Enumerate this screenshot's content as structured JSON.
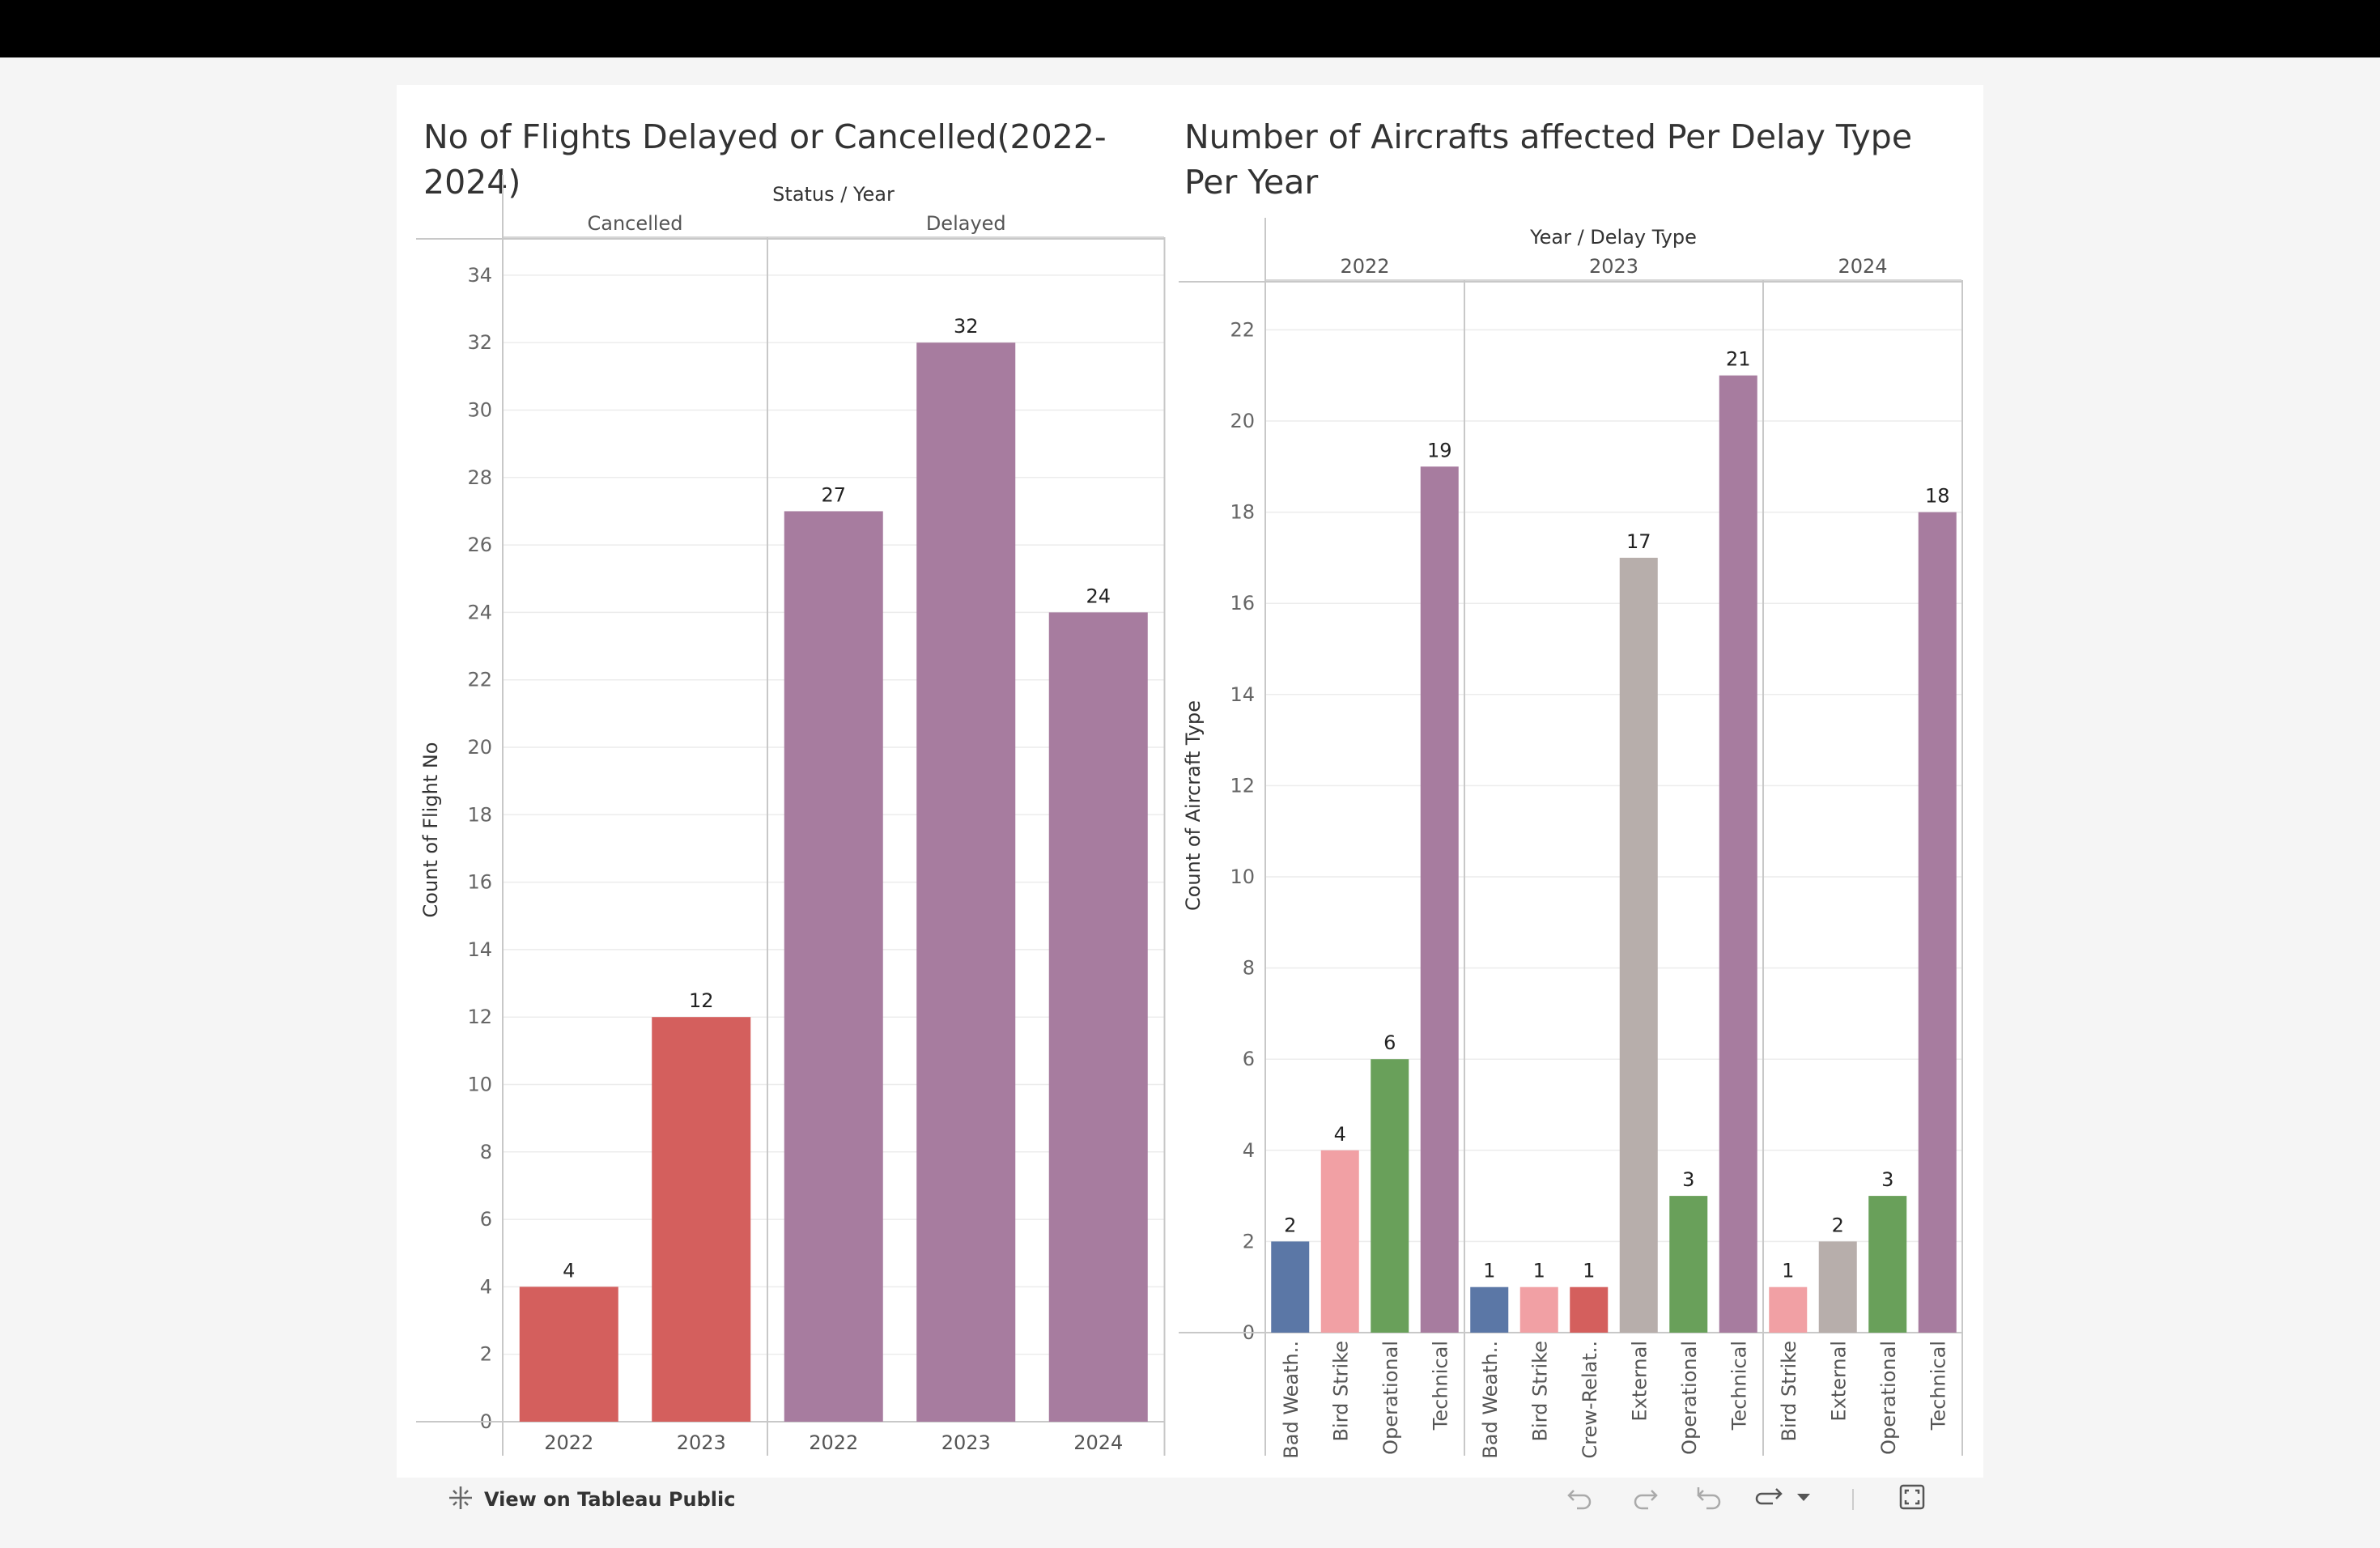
{
  "charts": [
    {
      "title": "No of Flights Delayed or Cancelled(2022-2024)",
      "chart_data": {
        "type": "bar",
        "title": "No of Flights Delayed or Cancelled(2022-2024)",
        "header_title": "Status / Year",
        "ylabel": "Count of Flight No",
        "xlabel": "",
        "ylim": [
          0,
          35
        ],
        "yticks": [
          0,
          2,
          4,
          6,
          8,
          10,
          12,
          14,
          16,
          18,
          20,
          22,
          24,
          26,
          28,
          30,
          32,
          34
        ],
        "grid": true,
        "groups": [
          {
            "name": "Cancelled",
            "categories": [
              "2022",
              "2023"
            ],
            "values": [
              4,
              12
            ],
            "color": "#d45f5d"
          },
          {
            "name": "Delayed",
            "categories": [
              "2022",
              "2023",
              "2024"
            ],
            "values": [
              27,
              32,
              24
            ],
            "color": "#a77c9f"
          }
        ]
      }
    },
    {
      "title": "Number of Aircrafts affected Per Delay Type Per Year",
      "chart_data": {
        "type": "bar",
        "title": "Number of Aircrafts affected Per Delay Type Per Year",
        "header_title": "Year / Delay Type",
        "ylabel": "Count of Aircraft Type",
        "xlabel": "",
        "ylim": [
          0,
          23
        ],
        "yticks": [
          0,
          2,
          4,
          6,
          8,
          10,
          12,
          14,
          16,
          18,
          20,
          22
        ],
        "grid": true,
        "groups": [
          {
            "name": "2022",
            "categories": [
              "Bad Weath..",
              "Bird Strike",
              "Operational",
              "Technical"
            ],
            "values": [
              2,
              4,
              6,
              19
            ],
            "colors": [
              "#5b77a6",
              "#f1a0a4",
              "#69a05a",
              "#a77c9f"
            ]
          },
          {
            "name": "2023",
            "categories": [
              "Bad Weath..",
              "Bird Strike",
              "Crew-Relat..",
              "External",
              "Operational",
              "Technical"
            ],
            "values": [
              1,
              1,
              1,
              17,
              3,
              21
            ],
            "colors": [
              "#5b77a6",
              "#f1a0a4",
              "#d45f5d",
              "#b7aeab",
              "#69a05a",
              "#a77c9f"
            ]
          },
          {
            "name": "2024",
            "categories": [
              "Bird Strike",
              "External",
              "Operational",
              "Technical"
            ],
            "values": [
              1,
              2,
              3,
              18
            ],
            "colors": [
              "#f1a0a4",
              "#b7aeab",
              "#69a05a",
              "#a77c9f"
            ]
          }
        ]
      }
    }
  ],
  "footer": {
    "view_label": "View on Tableau Public",
    "icons": [
      "tableau-icon",
      "undo-icon",
      "redo-icon",
      "revert-icon",
      "share-icon",
      "share-menu-icon",
      "fullscreen-icon"
    ]
  }
}
